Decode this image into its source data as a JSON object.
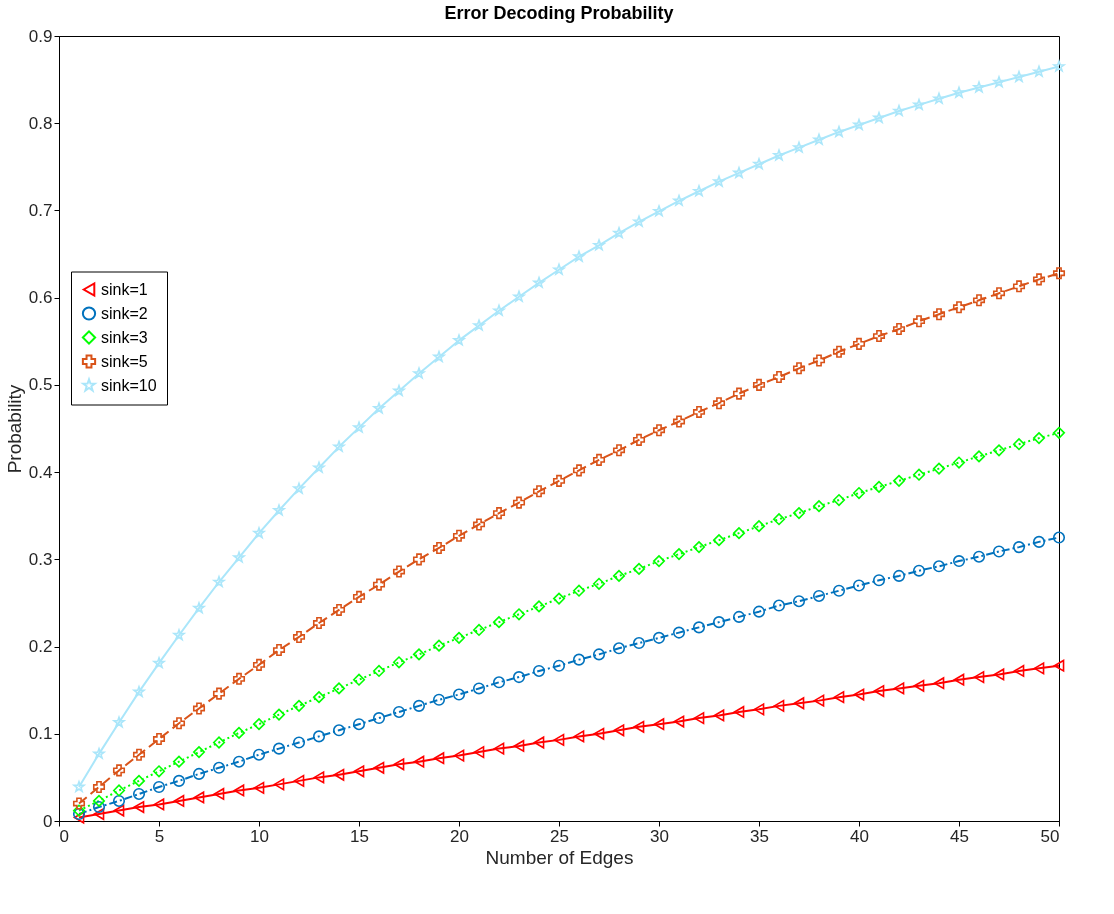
{
  "chart_data": {
    "type": "line",
    "title": "Error Decoding Probability",
    "xlabel": "Number of Edges",
    "ylabel": "Probability",
    "x": [
      1,
      2,
      3,
      4,
      5,
      6,
      7,
      8,
      9,
      10,
      11,
      12,
      13,
      14,
      15,
      16,
      17,
      18,
      19,
      20,
      21,
      22,
      23,
      24,
      25,
      26,
      27,
      28,
      29,
      30,
      31,
      32,
      33,
      34,
      35,
      36,
      37,
      38,
      39,
      40,
      41,
      42,
      43,
      44,
      45,
      46,
      47,
      48,
      49,
      50
    ],
    "series": [
      {
        "name": "sink=1",
        "color": "#ff0000",
        "marker": "triangle",
        "line_style": "solid",
        "values": [
          0.004,
          0.008,
          0.012,
          0.016,
          0.019,
          0.023,
          0.027,
          0.031,
          0.035,
          0.038,
          0.042,
          0.046,
          0.05,
          0.053,
          0.057,
          0.061,
          0.065,
          0.068,
          0.072,
          0.075,
          0.079,
          0.083,
          0.086,
          0.09,
          0.093,
          0.097,
          0.1,
          0.104,
          0.108,
          0.111,
          0.114,
          0.118,
          0.121,
          0.125,
          0.128,
          0.132,
          0.135,
          0.138,
          0.142,
          0.145,
          0.149,
          0.152,
          0.155,
          0.158,
          0.162,
          0.165,
          0.168,
          0.172,
          0.175,
          0.178
        ]
      },
      {
        "name": "sink=2",
        "color": "#0072bd",
        "marker": "circle",
        "line_style": "dashdot",
        "values": [
          0.008,
          0.016,
          0.023,
          0.031,
          0.039,
          0.046,
          0.054,
          0.061,
          0.068,
          0.076,
          0.083,
          0.09,
          0.097,
          0.104,
          0.111,
          0.118,
          0.125,
          0.132,
          0.139,
          0.145,
          0.152,
          0.159,
          0.165,
          0.172,
          0.178,
          0.185,
          0.191,
          0.198,
          0.204,
          0.21,
          0.216,
          0.222,
          0.228,
          0.234,
          0.24,
          0.247,
          0.252,
          0.258,
          0.264,
          0.27,
          0.276,
          0.281,
          0.287,
          0.292,
          0.298,
          0.303,
          0.309,
          0.314,
          0.32,
          0.325
        ]
      },
      {
        "name": "sink=3",
        "color": "#00ff00",
        "marker": "diamond",
        "line_style": "dotted",
        "values": [
          0.012,
          0.023,
          0.035,
          0.046,
          0.057,
          0.068,
          0.079,
          0.09,
          0.101,
          0.111,
          0.122,
          0.132,
          0.142,
          0.152,
          0.162,
          0.172,
          0.182,
          0.191,
          0.201,
          0.21,
          0.219,
          0.228,
          0.237,
          0.246,
          0.255,
          0.264,
          0.272,
          0.281,
          0.289,
          0.298,
          0.306,
          0.314,
          0.322,
          0.33,
          0.338,
          0.346,
          0.353,
          0.361,
          0.368,
          0.376,
          0.383,
          0.39,
          0.397,
          0.404,
          0.411,
          0.418,
          0.425,
          0.432,
          0.439,
          0.445
        ]
      },
      {
        "name": "sink=5",
        "color": "#d95319",
        "marker": "cross",
        "line_style": "dashed",
        "values": [
          0.02,
          0.039,
          0.058,
          0.076,
          0.094,
          0.112,
          0.129,
          0.146,
          0.163,
          0.179,
          0.196,
          0.211,
          0.227,
          0.242,
          0.257,
          0.271,
          0.286,
          0.3,
          0.313,
          0.327,
          0.34,
          0.353,
          0.365,
          0.378,
          0.39,
          0.402,
          0.414,
          0.425,
          0.437,
          0.448,
          0.458,
          0.469,
          0.479,
          0.49,
          0.5,
          0.509,
          0.519,
          0.528,
          0.538,
          0.547,
          0.556,
          0.564,
          0.573,
          0.581,
          0.589,
          0.597,
          0.605,
          0.613,
          0.621,
          0.628
        ]
      },
      {
        "name": "sink=10",
        "color": "#aae6fa",
        "marker": "star",
        "line_style": "solid",
        "values": [
          0.039,
          0.077,
          0.113,
          0.148,
          0.181,
          0.213,
          0.244,
          0.274,
          0.302,
          0.33,
          0.356,
          0.381,
          0.405,
          0.429,
          0.451,
          0.473,
          0.493,
          0.513,
          0.532,
          0.551,
          0.568,
          0.585,
          0.601,
          0.617,
          0.632,
          0.647,
          0.66,
          0.674,
          0.687,
          0.699,
          0.711,
          0.722,
          0.733,
          0.743,
          0.753,
          0.763,
          0.772,
          0.781,
          0.79,
          0.798,
          0.806,
          0.814,
          0.821,
          0.828,
          0.835,
          0.841,
          0.847,
          0.853,
          0.859,
          0.865
        ]
      }
    ],
    "xlim": [
      0,
      50
    ],
    "xticks": [
      0,
      5,
      10,
      15,
      20,
      25,
      30,
      35,
      40,
      45,
      50
    ],
    "ylim": [
      0,
      0.9
    ],
    "yticks": [
      0,
      0.1,
      0.2,
      0.3,
      0.4,
      0.5,
      0.6,
      0.7,
      0.8,
      0.9
    ],
    "grid": false,
    "legend": "left"
  }
}
